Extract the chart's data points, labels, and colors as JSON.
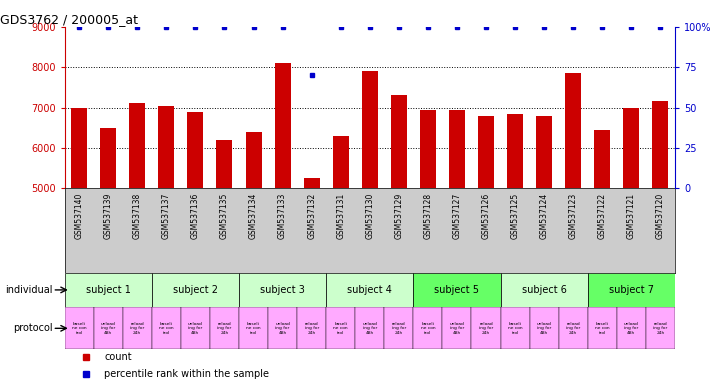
{
  "title": "GDS3762 / 200005_at",
  "samples": [
    "GSM537140",
    "GSM537139",
    "GSM537138",
    "GSM537137",
    "GSM537136",
    "GSM537135",
    "GSM537134",
    "GSM537133",
    "GSM537132",
    "GSM537131",
    "GSM537130",
    "GSM537129",
    "GSM537128",
    "GSM537127",
    "GSM537126",
    "GSM537125",
    "GSM537124",
    "GSM537123",
    "GSM537122",
    "GSM537121",
    "GSM537120"
  ],
  "bar_values": [
    7000,
    6500,
    7100,
    7050,
    6900,
    6200,
    6400,
    8100,
    5250,
    6300,
    7900,
    7300,
    6950,
    6950,
    6800,
    6850,
    6800,
    7850,
    6450,
    7000,
    7150
  ],
  "percentile_values": [
    100,
    100,
    100,
    100,
    100,
    100,
    100,
    100,
    70,
    100,
    100,
    100,
    100,
    100,
    100,
    100,
    100,
    100,
    100,
    100,
    100
  ],
  "ylim_left": [
    5000,
    9000
  ],
  "ylim_right": [
    0,
    100
  ],
  "yticks_left": [
    5000,
    6000,
    7000,
    8000,
    9000
  ],
  "yticks_right": [
    0,
    25,
    50,
    75,
    100
  ],
  "ytick_labels_right": [
    "0",
    "25",
    "50",
    "75",
    "100%"
  ],
  "bar_color": "#cc0000",
  "dot_color": "#0000cc",
  "bg_color": "#ffffff",
  "xlabel_bg": "#cccccc",
  "title_color": "#000000",
  "left_axis_color": "#cc0000",
  "right_axis_color": "#0000cc",
  "subjects": [
    {
      "label": "subject 1",
      "start": 0,
      "end": 3
    },
    {
      "label": "subject 2",
      "start": 3,
      "end": 6
    },
    {
      "label": "subject 3",
      "start": 6,
      "end": 9
    },
    {
      "label": "subject 4",
      "start": 9,
      "end": 12
    },
    {
      "label": "subject 5",
      "start": 12,
      "end": 15
    },
    {
      "label": "subject 6",
      "start": 15,
      "end": 18
    },
    {
      "label": "subject 7",
      "start": 18,
      "end": 21
    }
  ],
  "subject_colors": [
    "#ccffcc",
    "#ccffcc",
    "#ccffcc",
    "#ccffcc",
    "#66ff66",
    "#ccffcc",
    "#66ff66"
  ],
  "individual_label": "individual",
  "protocol_label": "protocol",
  "legend_count_color": "#cc0000",
  "legend_dot_color": "#0000cc"
}
